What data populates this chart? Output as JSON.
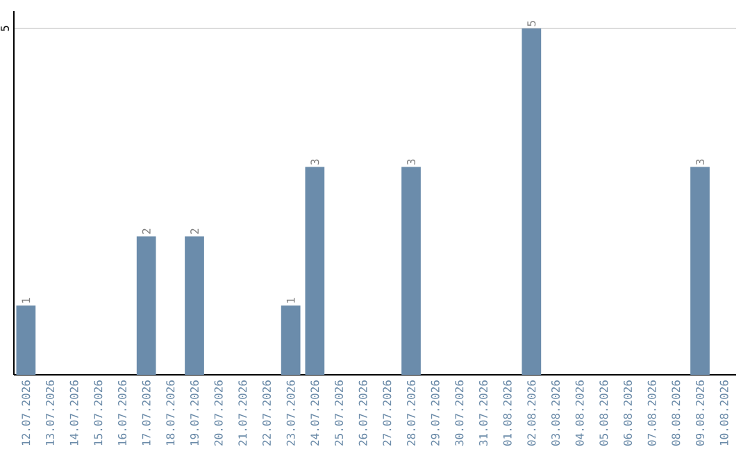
{
  "chart_data": {
    "type": "bar",
    "categories": [
      "12.07.2026",
      "13.07.2026",
      "14.07.2026",
      "15.07.2026",
      "16.07.2026",
      "17.07.2026",
      "18.07.2026",
      "19.07.2026",
      "20.07.2026",
      "21.07.2026",
      "22.07.2026",
      "23.07.2026",
      "24.07.2026",
      "25.07.2026",
      "26.07.2026",
      "27.07.2026",
      "28.07.2026",
      "29.07.2026",
      "30.07.2026",
      "31.07.2026",
      "01.08.2026",
      "02.08.2026",
      "03.08.2026",
      "04.08.2026",
      "05.08.2026",
      "06.08.2026",
      "07.08.2026",
      "08.08.2026",
      "09.08.2026",
      "10.08.2026"
    ],
    "values": [
      1,
      0,
      0,
      0,
      0,
      2,
      0,
      2,
      0,
      0,
      0,
      1,
      3,
      0,
      0,
      0,
      3,
      0,
      0,
      0,
      0,
      5,
      0,
      0,
      0,
      0,
      0,
      0,
      3,
      0
    ],
    "value_labels": [
      "1",
      null,
      null,
      null,
      null,
      "2",
      null,
      "2",
      null,
      null,
      null,
      "1",
      "3",
      null,
      null,
      null,
      "3",
      null,
      null,
      null,
      null,
      "5",
      null,
      null,
      null,
      null,
      null,
      null,
      "3",
      null
    ],
    "color": "#6b8cab",
    "ylim": [
      0,
      5.25
    ],
    "yticks": [
      5
    ],
    "grid": "y"
  }
}
